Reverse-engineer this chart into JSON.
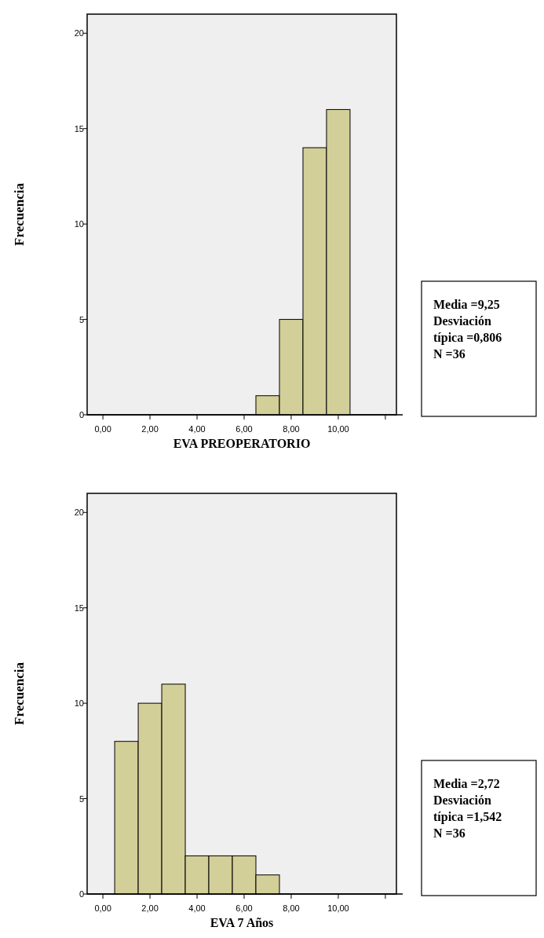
{
  "chart_data": [
    {
      "type": "histogram",
      "xlabel": "EVA PREOPERATORIO",
      "ylabel": "Frecuencia",
      "bins": [
        6.5,
        7.5,
        8.5,
        9.5,
        10.5
      ],
      "values": [
        1,
        5,
        14,
        16
      ],
      "color": "#d3cf99",
      "xlim": [
        -0.67,
        12.47
      ],
      "xticks": [
        {
          "value": 0,
          "label": "0,00"
        },
        {
          "value": 2,
          "label": "2,00"
        },
        {
          "value": 4,
          "label": "4,00"
        },
        {
          "value": 6,
          "label": "6,00"
        },
        {
          "value": 8,
          "label": "8,00"
        },
        {
          "value": 10,
          "label": "10,00"
        },
        {
          "value": 12,
          "label": null
        }
      ],
      "ylim": [
        0,
        21
      ],
      "yticks": [
        0,
        5,
        10,
        15,
        20
      ],
      "grid": false,
      "annotations": [
        "Media =9,25",
        "Desviación típica =0,806",
        "N =36"
      ]
    },
    {
      "type": "histogram",
      "xlabel": "EVA 7 Años",
      "ylabel": "Frecuencia",
      "bins": [
        0.5,
        1.5,
        2.5,
        3.5,
        4.5,
        5.5,
        6.5,
        7.5
      ],
      "values": [
        8,
        10,
        11,
        2,
        2,
        2,
        1
      ],
      "color": "#d3cf99",
      "xlim": [
        -0.67,
        12.47
      ],
      "xticks": [
        {
          "value": 0,
          "label": "0,00"
        },
        {
          "value": 2,
          "label": "2,00"
        },
        {
          "value": 4,
          "label": "4,00"
        },
        {
          "value": 6,
          "label": "6,00"
        },
        {
          "value": 8,
          "label": "8,00"
        },
        {
          "value": 10,
          "label": "10,00"
        },
        {
          "value": 12,
          "label": null
        }
      ],
      "ylim": [
        0,
        21
      ],
      "yticks": [
        0,
        5,
        10,
        15,
        20
      ],
      "grid": false,
      "annotations": [
        "Media =2,72",
        "Desviación típica =1,542",
        "N =36"
      ]
    }
  ]
}
